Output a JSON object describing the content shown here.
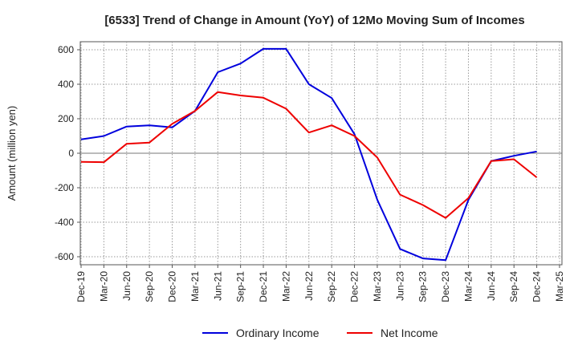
{
  "chart_data": {
    "type": "line",
    "title": "[6533]  Trend of Change in Amount (YoY) of 12Mo Moving Sum of Incomes",
    "ylabel": "Amount (million yen)",
    "xlabel": "",
    "ylim": [
      -650,
      650
    ],
    "yticks": [
      600,
      400,
      200,
      0,
      -200,
      -400,
      -600
    ],
    "grid": true,
    "legend_position": "bottom",
    "categories": [
      "Dec-19",
      "Mar-20",
      "Jun-20",
      "Sep-20",
      "Dec-20",
      "Mar-21",
      "Jun-21",
      "Sep-21",
      "Dec-21",
      "Mar-22",
      "Jun-22",
      "Sep-22",
      "Dec-22",
      "Mar-23",
      "Jun-23",
      "Sep-23",
      "Dec-23",
      "Mar-24",
      "Jun-24",
      "Sep-24",
      "Dec-24",
      "Mar-25"
    ],
    "series": [
      {
        "name": "Ordinary Income",
        "color": "#0000dd",
        "values": [
          80,
          100,
          155,
          162,
          150,
          245,
          470,
          520,
          605,
          605,
          400,
          320,
          110,
          -270,
          -555,
          -610,
          -620,
          -270,
          -45,
          -15,
          10,
          null
        ]
      },
      {
        "name": "Net Income",
        "color": "#ee0000",
        "values": [
          -50,
          -52,
          55,
          62,
          170,
          245,
          355,
          335,
          322,
          258,
          120,
          162,
          100,
          -25,
          -240,
          -300,
          -375,
          -260,
          -45,
          -35,
          -140,
          null
        ]
      }
    ]
  }
}
